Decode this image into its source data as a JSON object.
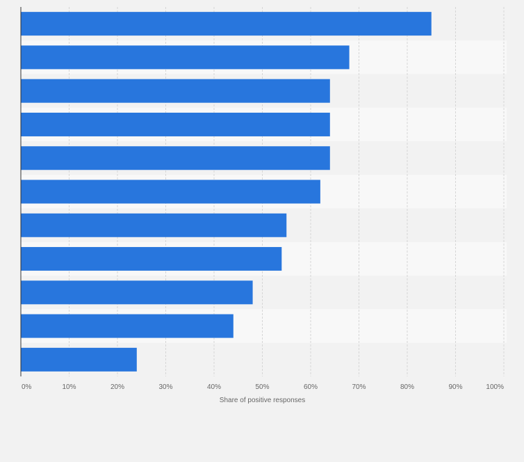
{
  "chart_data": {
    "type": "bar",
    "orientation": "horizontal",
    "categories": [
      "",
      "",
      "",
      "",
      "",
      "",
      "",
      "",
      "",
      "",
      ""
    ],
    "values": [
      85,
      68,
      64,
      64,
      64,
      62,
      55,
      54,
      48,
      44,
      24
    ],
    "xlabel": "Share of positive responses",
    "ylabel": "",
    "xlim": [
      0,
      100
    ],
    "x_ticks": [
      0,
      10,
      20,
      30,
      40,
      50,
      60,
      70,
      80,
      90,
      100
    ],
    "x_tick_labels": [
      "0%",
      "10%",
      "20%",
      "30%",
      "40%",
      "50%",
      "60%",
      "70%",
      "80%",
      "90%",
      "100%"
    ],
    "grid": true,
    "legend": "none"
  },
  "colors": {
    "bar": "#2876dd",
    "band_light": "#f8f8f8",
    "band_dark": "#f2f2f2",
    "grid": "#d6d6d6",
    "axis": "#333333",
    "text": "#666666"
  }
}
